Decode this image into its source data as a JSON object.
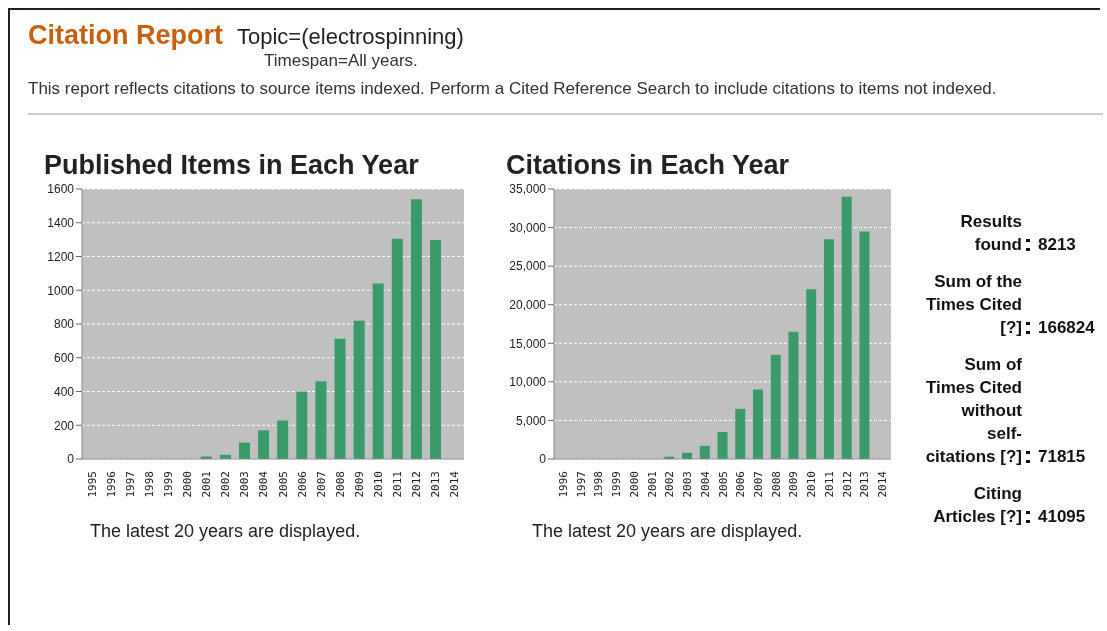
{
  "chart_data": [
    {
      "type": "bar",
      "title": "Published Items in Each Year",
      "categories": [
        "1995",
        "1996",
        "1997",
        "1998",
        "1999",
        "2000",
        "2001",
        "2002",
        "2003",
        "2004",
        "2005",
        "2006",
        "2007",
        "2008",
        "2009",
        "2010",
        "2011",
        "2012",
        "2013",
        "2014"
      ],
      "values": [
        0,
        0,
        0,
        0,
        0,
        0,
        15,
        25,
        97,
        170,
        228,
        400,
        460,
        712,
        820,
        1040,
        1305,
        1540,
        1298,
        0
      ],
      "color": "#3a9a6a",
      "ylim": [
        0,
        1600
      ],
      "yticks": [
        0,
        200,
        400,
        600,
        800,
        1000,
        1200,
        1400,
        1600
      ],
      "grid": "y",
      "annotations": [
        "Citation Report",
        "Topic=(electrospinning)",
        "Timespan=All years.",
        "This report reflects citations to source items indexed. Perform a Cited Reference Search to include citations to items not indexed.",
        "The latest 20 years are displayed."
      ]
    },
    {
      "type": "bar",
      "title": "Citations in Each Year",
      "categories": [
        "1996",
        "1997",
        "1998",
        "1999",
        "2000",
        "2001",
        "2002",
        "2003",
        "2004",
        "2005",
        "2006",
        "2007",
        "2008",
        "2009",
        "2010",
        "2011",
        "2012",
        "2013",
        "2014"
      ],
      "values": [
        0,
        0,
        0,
        0,
        0,
        0,
        300,
        800,
        1700,
        3500,
        6500,
        9000,
        13500,
        16500,
        22000,
        28500,
        34000,
        29500,
        0
      ],
      "color": "#3a9a6a",
      "ylim": [
        0,
        35000
      ],
      "yticks": [
        0,
        {
          "value": 5000,
          "label": "5,000"
        },
        {
          "value": 10000,
          "label": "10,000"
        },
        {
          "value": 15000,
          "label": "15,000"
        },
        {
          "value": 20000,
          "label": "20,000"
        },
        {
          "value": 25000,
          "label": "25,000"
        },
        {
          "value": 30000,
          "label": "30,000"
        },
        {
          "value": 35000,
          "label": "35,000"
        }
      ],
      "grid": "y",
      "annotations": [
        "The latest 20 years are displayed."
      ]
    },
    {
      "type": "other",
      "categories": [
        "Results found",
        "Sum of the Times Cited [?]",
        "Sum of Times Cited without self-citations [?]",
        "Citing Articles [?]"
      ],
      "values": [
        8213,
        166824,
        71815,
        41095
      ],
      "data_labels": true
    }
  ]
}
